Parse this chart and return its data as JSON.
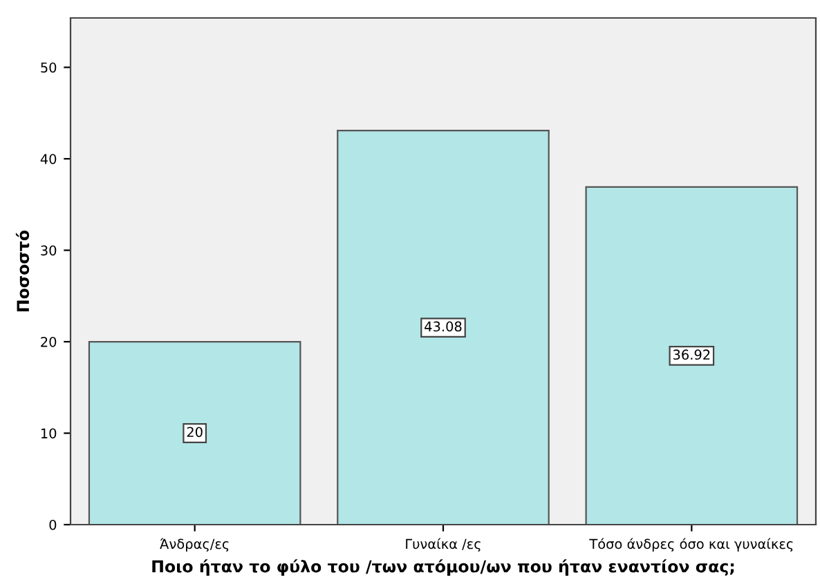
{
  "chart_data": {
    "type": "bar",
    "xlabel": "Ποιο ήταν το φύλο του /των ατόμου/ων που ήταν εναντίον σας;",
    "ylabel": "Ποσοστό",
    "categories": [
      "Άνδρας/ες",
      "Γυναίκα /ες",
      "Τόσο άνδρες όσο και γυναίκες"
    ],
    "values": [
      20,
      43.08,
      36.92
    ],
    "color": "#b3e6e6",
    "ylim": [
      0,
      55.4
    ],
    "yticks": [
      0,
      10,
      20,
      30,
      40,
      50
    ],
    "grid": false,
    "data_labels": true
  }
}
